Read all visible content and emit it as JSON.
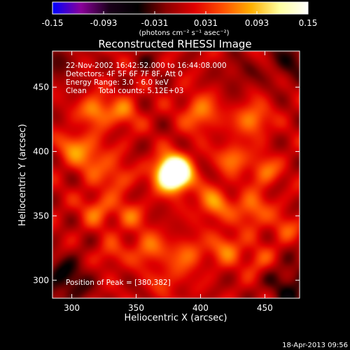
{
  "chart_data": {
    "type": "heatmap",
    "title": "Reconstructed RHESSI Image",
    "xlabel": "Heliocentric X (arcsec)",
    "ylabel": "Heliocentric Y (arcsec)",
    "xlim": [
      285,
      477
    ],
    "ylim": [
      286,
      478
    ],
    "xticks": [
      300,
      350,
      400,
      450
    ],
    "yticks": [
      300,
      350,
      400,
      450
    ],
    "colorbar": {
      "min": -0.15,
      "max": 0.15,
      "ticks": [
        "-0.15",
        "-0.093",
        "-0.031",
        "0.031",
        "0.093",
        "0.15"
      ],
      "unit_label": "(photons cm⁻² s⁻¹ asec⁻²)",
      "colors": [
        "#0000ff",
        "#8a009a",
        "#1a001a",
        "#000000",
        "#8a0000",
        "#e00000",
        "#ff5000",
        "#ffb000",
        "#ffffa0",
        "#ffffff"
      ]
    },
    "annotations": [
      "22-Nov-2002 16:42:52.000 to 16:44:08.000",
      "Detectors: 4F 5F 6F 7F 8F, Att 0",
      "Energy Range: 3.0 - 6.0 keV",
      "Clean     Total counts: 5.12E+03"
    ],
    "peak_label": "Position of Peak = [380,382]",
    "peak": {
      "x": 380,
      "y": 382
    },
    "blobs": [
      {
        "x": 379,
        "y": 383,
        "amp": 0.25,
        "sigma": 9
      },
      {
        "x": 318,
        "y": 432,
        "amp": 0.07,
        "sigma": 8
      },
      {
        "x": 340,
        "y": 430,
        "amp": 0.05,
        "sigma": 9
      },
      {
        "x": 400,
        "y": 430,
        "amp": 0.06,
        "sigma": 10
      },
      {
        "x": 440,
        "y": 425,
        "amp": 0.065,
        "sigma": 9
      },
      {
        "x": 425,
        "y": 395,
        "amp": 0.06,
        "sigma": 8
      },
      {
        "x": 450,
        "y": 385,
        "amp": 0.055,
        "sigma": 8
      },
      {
        "x": 315,
        "y": 395,
        "amp": 0.055,
        "sigma": 10
      },
      {
        "x": 300,
        "y": 405,
        "amp": 0.05,
        "sigma": 8
      },
      {
        "x": 335,
        "y": 380,
        "amp": 0.045,
        "sigma": 8
      },
      {
        "x": 410,
        "y": 360,
        "amp": 0.065,
        "sigma": 9
      },
      {
        "x": 440,
        "y": 355,
        "amp": 0.06,
        "sigma": 9
      },
      {
        "x": 465,
        "y": 340,
        "amp": 0.04,
        "sigma": 8
      },
      {
        "x": 320,
        "y": 355,
        "amp": 0.05,
        "sigma": 9
      },
      {
        "x": 345,
        "y": 350,
        "amp": 0.045,
        "sigma": 8
      },
      {
        "x": 360,
        "y": 325,
        "amp": 0.055,
        "sigma": 9
      },
      {
        "x": 390,
        "y": 320,
        "amp": 0.05,
        "sigma": 9
      },
      {
        "x": 420,
        "y": 325,
        "amp": 0.055,
        "sigma": 9
      },
      {
        "x": 445,
        "y": 315,
        "amp": 0.04,
        "sigma": 8
      },
      {
        "x": 330,
        "y": 320,
        "amp": 0.035,
        "sigma": 8
      },
      {
        "x": 375,
        "y": 300,
        "amp": 0.03,
        "sigma": 9
      },
      {
        "x": 295,
        "y": 300,
        "amp": -0.05,
        "sigma": 14
      },
      {
        "x": 470,
        "y": 295,
        "amp": -0.045,
        "sigma": 14
      },
      {
        "x": 470,
        "y": 470,
        "amp": -0.04,
        "sigma": 12
      },
      {
        "x": 290,
        "y": 470,
        "amp": -0.03,
        "sigma": 10
      },
      {
        "x": 430,
        "y": 460,
        "amp": -0.025,
        "sigma": 10
      },
      {
        "x": 360,
        "y": 470,
        "amp": -0.02,
        "sigma": 9
      }
    ]
  },
  "footer": {
    "date": "18-Apr-2013 09:56"
  }
}
